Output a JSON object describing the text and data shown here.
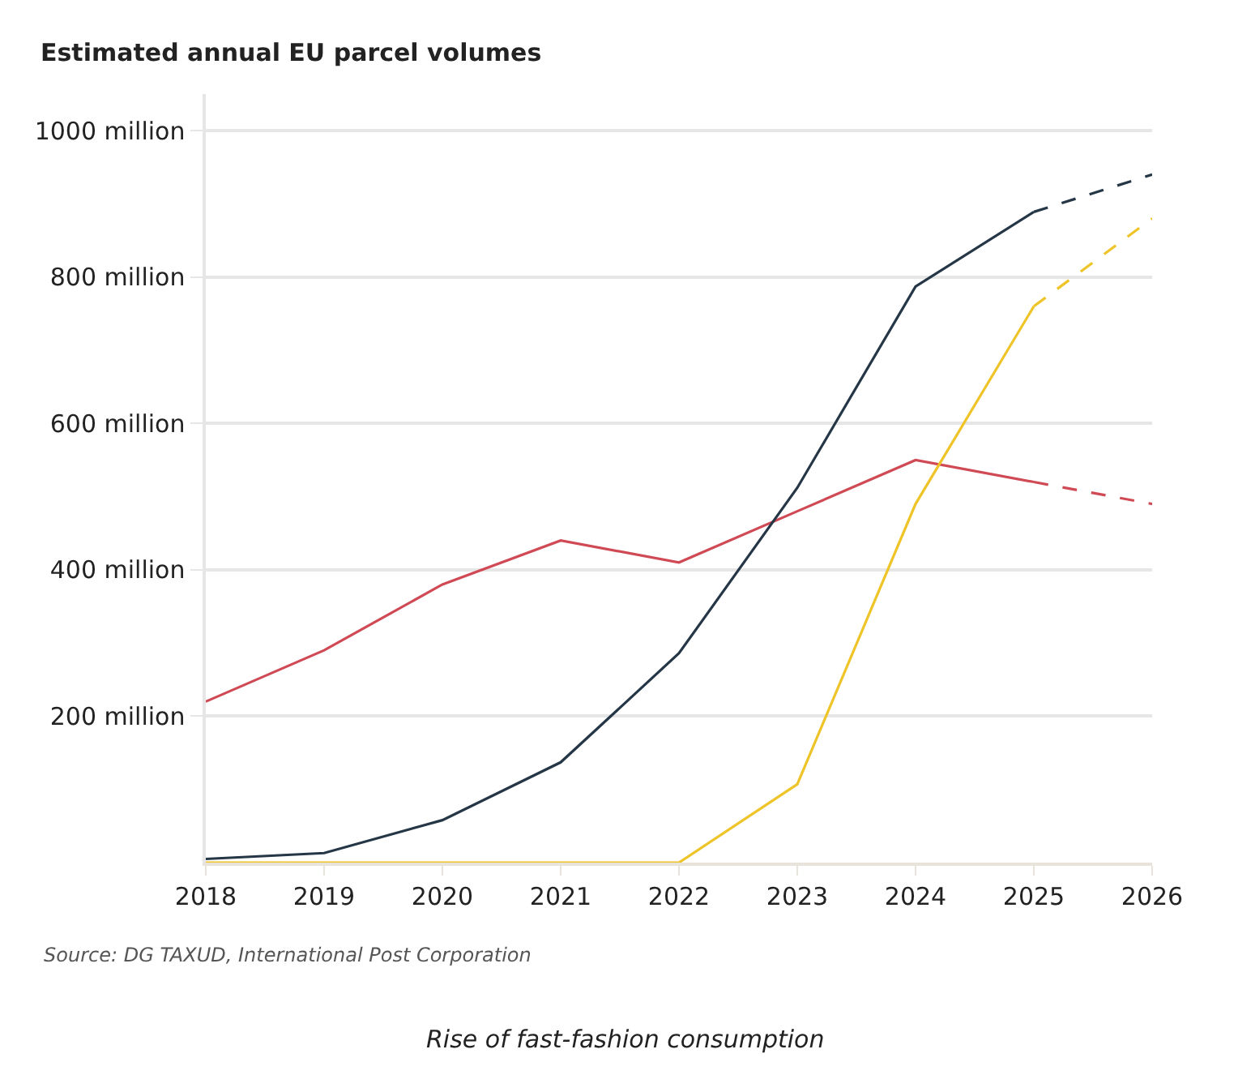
{
  "chart_data": {
    "type": "line",
    "title": "Estimated annual EU parcel volumes",
    "xlim": [
      2018,
      2026
    ],
    "xticks": [
      2018,
      2019,
      2020,
      2021,
      2022,
      2023,
      2024,
      2025,
      2026
    ],
    "ylim": [
      0,
      1050
    ],
    "yticks": [
      {
        "value": 200,
        "label": "200 million"
      },
      {
        "value": 400,
        "label": "400 million"
      },
      {
        "value": 600,
        "label": "600 million"
      },
      {
        "value": 800,
        "label": "800 million"
      },
      {
        "value": 1000,
        "label": "1000 million"
      }
    ],
    "grid": "y",
    "series": [
      {
        "color": "#d04a55",
        "line_style": "solid",
        "x": [
          2018,
          2019,
          2020,
          2021,
          2022,
          2023,
          2024,
          2025
        ],
        "values": [
          220,
          290,
          380,
          440,
          410,
          480,
          550,
          520
        ]
      },
      {
        "color": "#d04a55",
        "line_style": "dashed",
        "x": [
          2025,
          2026
        ],
        "values": [
          520,
          490
        ]
      },
      {
        "color": "#253746",
        "line_style": "solid",
        "x": [
          2018,
          2019,
          2020,
          2021,
          2022,
          2023,
          2024,
          2025
        ],
        "values": [
          5,
          13,
          58,
          137,
          286,
          512,
          787,
          889
        ]
      },
      {
        "color": "#253746",
        "line_style": "dashed",
        "x": [
          2025,
          2026
        ],
        "values": [
          889,
          940
        ]
      },
      {
        "color": "#eec428",
        "line_style": "solid",
        "x": [
          2018,
          2019,
          2020,
          2021,
          2022,
          2023,
          2024,
          2025
        ],
        "values": [
          0,
          0,
          0,
          0,
          0,
          107,
          490,
          760
        ]
      },
      {
        "color": "#eec428",
        "line_style": "dashed",
        "x": [
          2025,
          2026
        ],
        "values": [
          760,
          880
        ]
      }
    ],
    "annotations": [
      "Source: DG TAXUD, International Post Corporation",
      "Rise of fast-fashion consumption"
    ]
  }
}
